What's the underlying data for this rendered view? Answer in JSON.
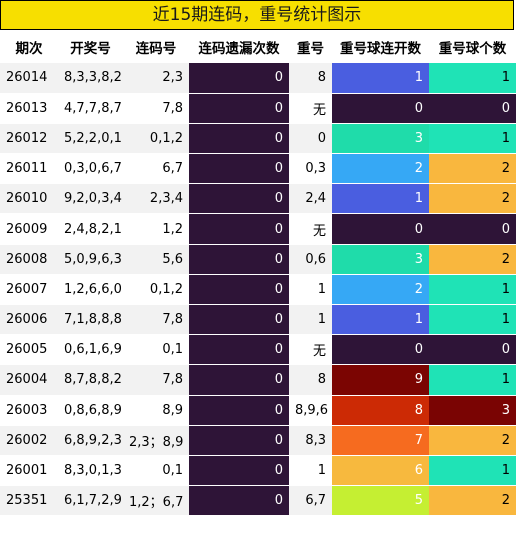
{
  "title": "近15期连码，重号统计图示",
  "columns": [
    "期次",
    "开奖号",
    "连码号",
    "连码遗漏次数",
    "重号",
    "重号球连开数",
    "重号球个数"
  ],
  "palette": {
    "0": "#2e1437",
    "1": "#4a5ee0",
    "2": "#36a8f5",
    "3": "#1fdcaa",
    "5": "#c5ef32",
    "6": "#f7b93e",
    "7": "#f66b1f",
    "8": "#cc2a05",
    "9": "#7b0502"
  },
  "countPalette": {
    "0": "#2e1437",
    "1": "#1fe3b6",
    "2": "#f9b73e",
    "3": "#7a0403"
  },
  "rows": [
    {
      "period": "26014",
      "numbers": "8,3,3,8,2",
      "consec": "2,3",
      "miss": "0",
      "repeat": "8",
      "streak": "1",
      "count": "1"
    },
    {
      "period": "26013",
      "numbers": "4,7,7,8,7",
      "consec": "7,8",
      "miss": "0",
      "repeat": "无",
      "streak": "0",
      "count": "0"
    },
    {
      "period": "26012",
      "numbers": "5,2,2,0,1",
      "consec": "0,1,2",
      "miss": "0",
      "repeat": "0",
      "streak": "3",
      "count": "1"
    },
    {
      "period": "26011",
      "numbers": "0,3,0,6,7",
      "consec": "6,7",
      "miss": "0",
      "repeat": "0,3",
      "streak": "2",
      "count": "2"
    },
    {
      "period": "26010",
      "numbers": "9,2,0,3,4",
      "consec": "2,3,4",
      "miss": "0",
      "repeat": "2,4",
      "streak": "1",
      "count": "2"
    },
    {
      "period": "26009",
      "numbers": "2,4,8,2,1",
      "consec": "1,2",
      "miss": "0",
      "repeat": "无",
      "streak": "0",
      "count": "0"
    },
    {
      "period": "26008",
      "numbers": "5,0,9,6,3",
      "consec": "5,6",
      "miss": "0",
      "repeat": "0,6",
      "streak": "3",
      "count": "2"
    },
    {
      "period": "26007",
      "numbers": "1,2,6,6,0",
      "consec": "0,1,2",
      "miss": "0",
      "repeat": "1",
      "streak": "2",
      "count": "1"
    },
    {
      "period": "26006",
      "numbers": "7,1,8,8,8",
      "consec": "7,8",
      "miss": "0",
      "repeat": "1",
      "streak": "1",
      "count": "1"
    },
    {
      "period": "26005",
      "numbers": "0,6,1,6,9",
      "consec": "0,1",
      "miss": "0",
      "repeat": "无",
      "streak": "0",
      "count": "0"
    },
    {
      "period": "26004",
      "numbers": "8,7,8,8,2",
      "consec": "7,8",
      "miss": "0",
      "repeat": "8",
      "streak": "9",
      "count": "1"
    },
    {
      "period": "26003",
      "numbers": "0,8,6,8,9",
      "consec": "8,9",
      "miss": "0",
      "repeat": "8,9,6",
      "streak": "8",
      "count": "3"
    },
    {
      "period": "26002",
      "numbers": "6,8,9,2,3",
      "consec": "2,3；8,9",
      "miss": "0",
      "repeat": "8,3",
      "streak": "7",
      "count": "2"
    },
    {
      "period": "26001",
      "numbers": "8,3,0,1,3",
      "consec": "0,1",
      "miss": "0",
      "repeat": "1",
      "streak": "6",
      "count": "1"
    },
    {
      "period": "25351",
      "numbers": "6,1,7,2,9",
      "consec": "1,2；6,7",
      "miss": "0",
      "repeat": "6,7",
      "streak": "5",
      "count": "2"
    }
  ]
}
